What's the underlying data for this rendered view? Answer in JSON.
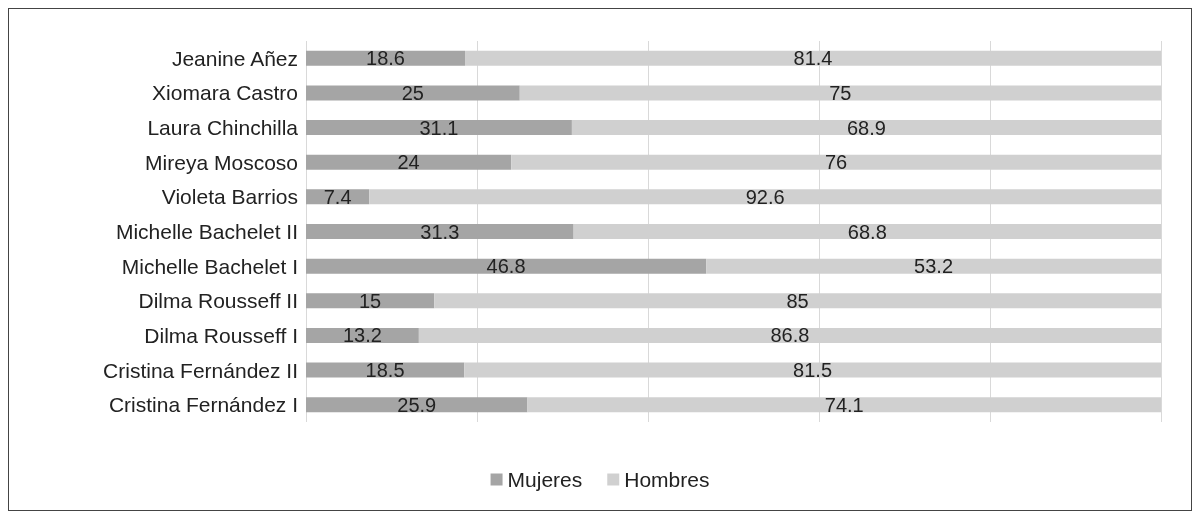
{
  "chart_data": {
    "type": "bar",
    "orientation": "horizontal",
    "stacked": true,
    "data_labels": true,
    "grid": "x",
    "legend": "bottom",
    "tick_labels": "y",
    "categories": [
      "Jeanine Añez",
      "Xiomara Castro",
      "Laura Chinchilla",
      "Mireya Moscoso",
      "Violeta Barrios",
      "Michelle Bachelet II",
      "Michelle Bachelet I",
      "Dilma Rousseff II",
      "Dilma Rousseff I",
      "Cristina Fernández II",
      "Cristina Fernández I"
    ],
    "xlim": [
      0,
      100
    ],
    "xticks": [
      {
        "value": 0,
        "label": null
      },
      {
        "value": 20,
        "label": null
      },
      {
        "value": 40,
        "label": null
      },
      {
        "value": 60,
        "label": null
      },
      {
        "value": 80,
        "label": null
      },
      {
        "value": 100,
        "label": null
      }
    ],
    "series": [
      {
        "name": "Mujeres",
        "color": "#a5a5a5",
        "values": [
          18.6,
          25,
          31.1,
          24,
          7.4,
          31.3,
          46.8,
          15,
          13.2,
          18.5,
          25.9
        ]
      },
      {
        "name": "Hombres",
        "color": "#d0d0d0",
        "values": [
          81.4,
          75,
          68.9,
          76,
          92.6,
          68.8,
          53.2,
          85,
          86.8,
          81.5,
          74.1
        ]
      }
    ]
  }
}
